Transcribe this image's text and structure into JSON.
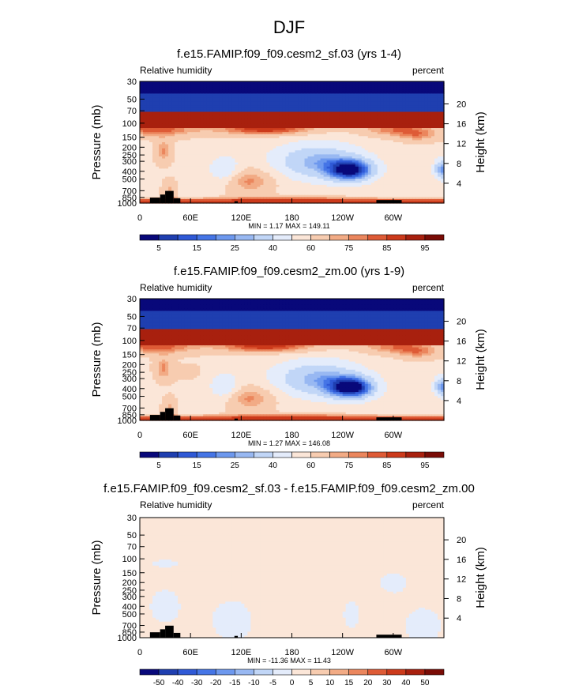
{
  "figure_title": "DJF",
  "colors": {
    "rh_levels": [
      "#08087a",
      "#1f3fb0",
      "#2f59d6",
      "#4575e6",
      "#6d98ee",
      "#98b8f2",
      "#c1d6f7",
      "#e4ecfb",
      "#fbe6d8",
      "#f7ccb0",
      "#f2ab85",
      "#eb865d",
      "#de5b36",
      "#cc3a1b",
      "#a8200e",
      "#7a0c06"
    ],
    "diff_levels": [
      "#08087a",
      "#1f3fb0",
      "#2f59d6",
      "#4575e6",
      "#6d98ee",
      "#98b8f2",
      "#c1d6f7",
      "#e4ecfb",
      "#fbe6d8",
      "#f7ccb0",
      "#f2ab85",
      "#eb865d",
      "#de5b36",
      "#cc3a1b",
      "#a8200e",
      "#7a0c06"
    ],
    "topography": "#000000"
  },
  "chart_data": [
    {
      "type": "heatmap",
      "title": "f.e15.FAMIP.f09_f09.cesm2_sf.03 (yrs 1-4)",
      "left_label": "Relative humidity",
      "right_label": "percent",
      "ylabel": "Pressure (mb)",
      "ylabel_right": "Height (km)",
      "x_ticks": [
        "0",
        "60E",
        "120E",
        "180",
        "120W",
        "60W"
      ],
      "y_ticks": [
        "1000",
        "850",
        "700",
        "500",
        "400",
        "300",
        "250",
        "200",
        "150",
        "100",
        "70",
        "50",
        "30"
      ],
      "y_ticks_right": [
        "4",
        "8",
        "12",
        "16",
        "20"
      ],
      "ylim": [
        1000,
        30
      ],
      "min_max": "MIN =   1.17  MAX = 149.11",
      "colorbar_labels": [
        "5",
        "15",
        "25",
        "40",
        "60",
        "75",
        "85",
        "95"
      ],
      "field": "rh_sf"
    },
    {
      "type": "heatmap",
      "title": "f.e15.FAMIP.f09_f09.cesm2_zm.00 (yrs 1-9)",
      "left_label": "Relative humidity",
      "right_label": "percent",
      "ylabel": "Pressure (mb)",
      "ylabel_right": "Height (km)",
      "x_ticks": [
        "0",
        "60E",
        "120E",
        "180",
        "120W",
        "60W"
      ],
      "y_ticks": [
        "1000",
        "850",
        "700",
        "500",
        "400",
        "300",
        "250",
        "200",
        "150",
        "100",
        "70",
        "50",
        "30"
      ],
      "y_ticks_right": [
        "4",
        "8",
        "12",
        "16",
        "20"
      ],
      "ylim": [
        1000,
        30
      ],
      "min_max": "MIN =   1.27  MAX = 146.08",
      "colorbar_labels": [
        "5",
        "15",
        "25",
        "40",
        "60",
        "75",
        "85",
        "95"
      ],
      "field": "rh_zm"
    },
    {
      "type": "heatmap",
      "title": "f.e15.FAMIP.f09_f09.cesm2_sf.03 - f.e15.FAMIP.f09_f09.cesm2_zm.00",
      "left_label": "Relative humidity",
      "right_label": "percent",
      "ylabel": "Pressure (mb)",
      "ylabel_right": "Height (km)",
      "x_ticks": [
        "0",
        "60E",
        "120E",
        "180",
        "120W",
        "60W"
      ],
      "y_ticks": [
        "1000",
        "850",
        "700",
        "500",
        "400",
        "300",
        "250",
        "200",
        "150",
        "100",
        "70",
        "50",
        "30"
      ],
      "y_ticks_right": [
        "4",
        "8",
        "12",
        "16",
        "20"
      ],
      "ylim": [
        1000,
        30
      ],
      "min_max": "MIN = -11.36  MAX =  11.43",
      "colorbar_labels": [
        "-50",
        "-40",
        "-30",
        "-20",
        "-15",
        "-10",
        "-5",
        "0",
        "5",
        "10",
        "15",
        "20",
        "30",
        "40",
        "50"
      ],
      "field": "diff"
    }
  ]
}
